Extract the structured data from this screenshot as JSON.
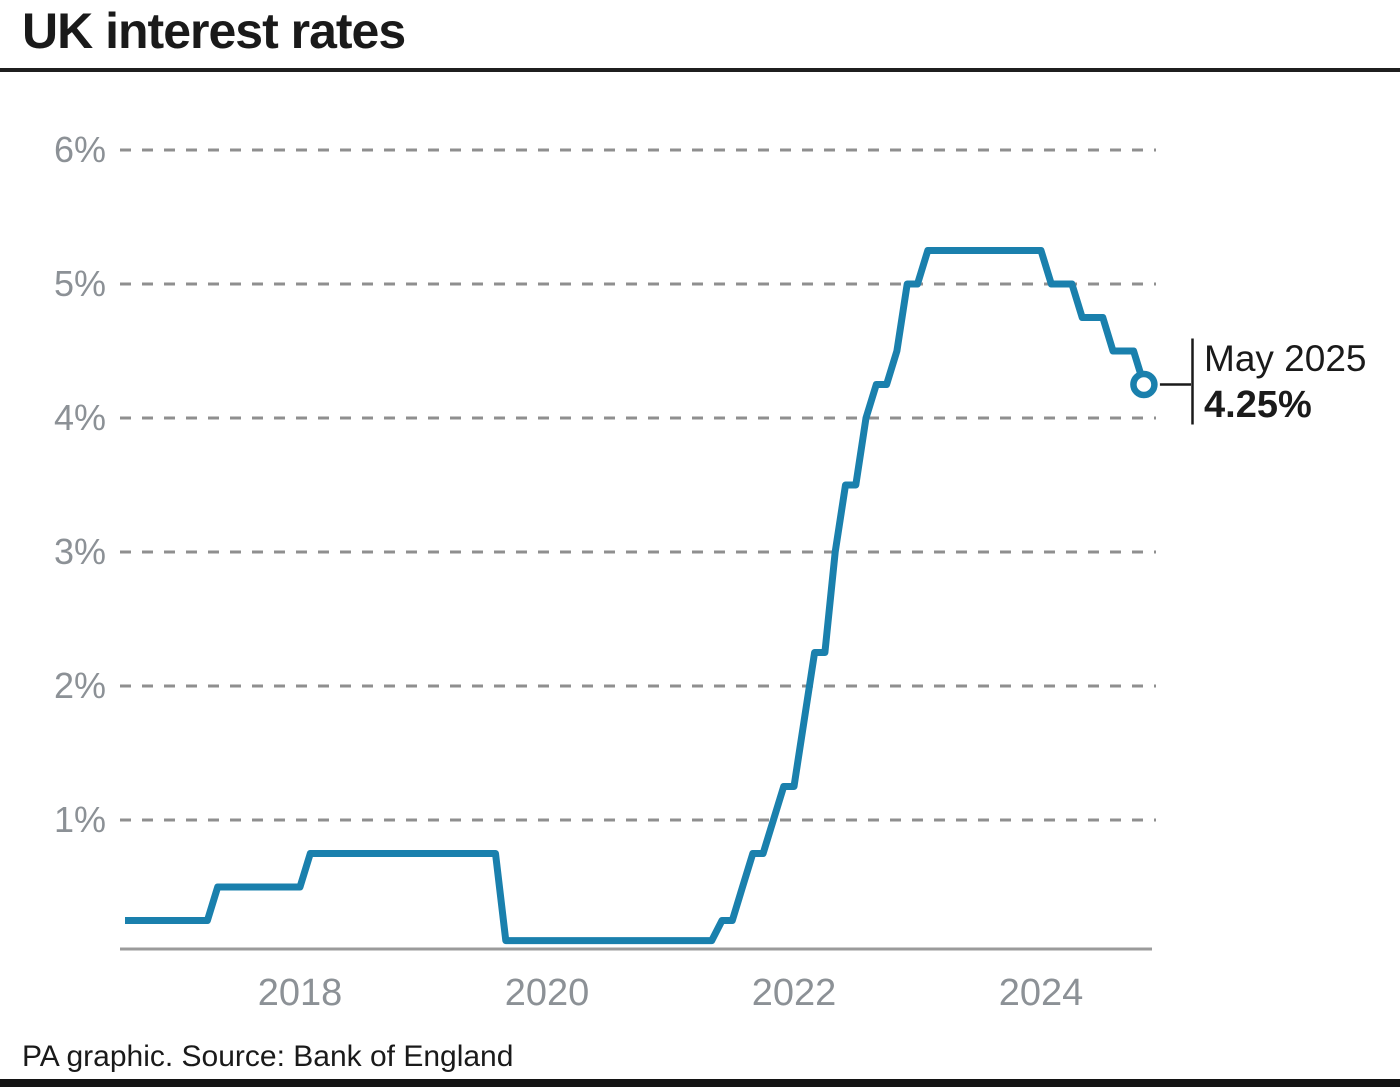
{
  "title": "UK interest rates",
  "footer": {
    "caption": "PA graphic. Source: Bank of England"
  },
  "colors": {
    "line": "#1A80AD",
    "grid": "#8F8F8F",
    "axis": "#9B9B9B",
    "tick_text": "#8C9196",
    "annotation": "#1A1A1A",
    "marker_fill": "#FFFFFF"
  },
  "chart_data": {
    "type": "line",
    "title": "UK interest rates",
    "unit": "%",
    "grid": "horizontal-dashed",
    "legend": "none",
    "ylim": [
      0,
      6.3
    ],
    "y_ticks": [
      {
        "label": "1%",
        "value": 1
      },
      {
        "label": "2%",
        "value": 2
      },
      {
        "label": "3%",
        "value": 3
      },
      {
        "label": "4%",
        "value": 4
      },
      {
        "label": "5%",
        "value": 5
      },
      {
        "label": "6%",
        "value": 6
      }
    ],
    "x_ticks": [
      {
        "label": "2018",
        "year": 2018
      },
      {
        "label": "2020",
        "year": 2020
      },
      {
        "label": "2022",
        "year": 2022
      },
      {
        "label": "2024",
        "year": 2024
      }
    ],
    "rate_changes": [
      {
        "date": "2017-02",
        "rate": 0.25
      },
      {
        "date": "2017-11",
        "rate": 0.5
      },
      {
        "date": "2018-08",
        "rate": 0.75
      },
      {
        "date": "2020-03",
        "rate": 0.1
      },
      {
        "date": "2021-12",
        "rate": 0.25
      },
      {
        "date": "2022-02",
        "rate": 0.5
      },
      {
        "date": "2022-03",
        "rate": 0.75
      },
      {
        "date": "2022-05",
        "rate": 1.0
      },
      {
        "date": "2022-06",
        "rate": 1.25
      },
      {
        "date": "2022-08",
        "rate": 1.75
      },
      {
        "date": "2022-09",
        "rate": 2.25
      },
      {
        "date": "2022-11",
        "rate": 3.0
      },
      {
        "date": "2022-12",
        "rate": 3.5
      },
      {
        "date": "2023-02",
        "rate": 4.0
      },
      {
        "date": "2023-03",
        "rate": 4.25
      },
      {
        "date": "2023-05",
        "rate": 4.5
      },
      {
        "date": "2023-06",
        "rate": 5.0
      },
      {
        "date": "2023-08",
        "rate": 5.25
      },
      {
        "date": "2024-08",
        "rate": 5.0
      },
      {
        "date": "2024-11",
        "rate": 4.75
      },
      {
        "date": "2025-02",
        "rate": 4.5
      },
      {
        "date": "2025-05",
        "rate": 4.25
      }
    ],
    "end_label": {
      "line1": "May 2025",
      "line2": "4.25%"
    }
  }
}
